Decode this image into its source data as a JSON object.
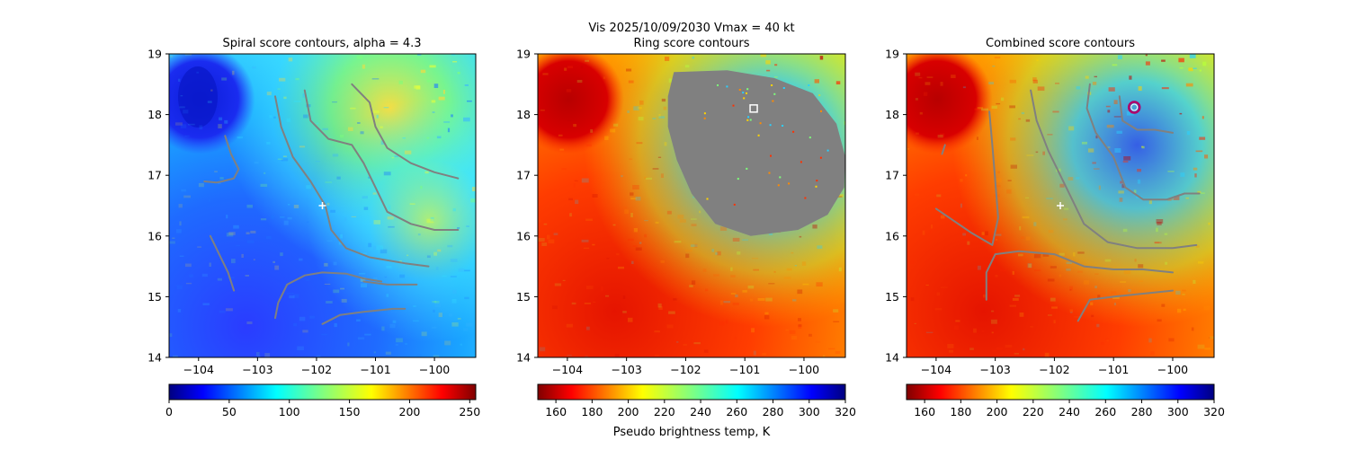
{
  "figure": {
    "suptitle_line1": "Vis  2025/10/09/2030    Vmax = 40 kt",
    "colorbar_label": "Pseudo brightness temp, K"
  },
  "chart_data": [
    {
      "type": "heatmap",
      "title": "Spiral score contours, alpha =  4.3",
      "xlabel": "",
      "ylabel": "",
      "xlim": [
        -104.5,
        -99.3
      ],
      "ylim": [
        14,
        19
      ],
      "x_ticks": [
        -104,
        -103,
        -102,
        -101,
        -100
      ],
      "x_tick_labels": [
        "−104",
        "−103",
        "−102",
        "−101",
        "−100"
      ],
      "y_ticks": [
        14,
        15,
        16,
        17,
        18,
        19
      ],
      "y_tick_labels": [
        "14",
        "15",
        "16",
        "17",
        "18",
        "19"
      ],
      "colormap": "jet",
      "colorbar": {
        "range": [
          0,
          255
        ],
        "reversed": false,
        "ticks": [
          0,
          50,
          100,
          150,
          200,
          250
        ],
        "tick_labels": [
          "0",
          "50",
          "100",
          "150",
          "200",
          "250"
        ]
      },
      "center_marker": {
        "x": -101.9,
        "y": 16.5,
        "symbol": "+",
        "color": "#ffffff"
      },
      "contour_color": "#808080",
      "contours": [
        [
          [
            -103.9,
            16.9
          ],
          [
            -103.7,
            16.88
          ],
          [
            -103.6,
            16.9
          ],
          [
            -103.4,
            16.95
          ],
          [
            -103.32,
            17.1
          ],
          [
            -103.45,
            17.35
          ],
          [
            -103.55,
            17.65
          ]
        ],
        [
          [
            -103.8,
            16.0
          ],
          [
            -103.65,
            15.7
          ],
          [
            -103.5,
            15.4
          ],
          [
            -103.4,
            15.1
          ]
        ],
        [
          [
            -102.7,
            14.65
          ],
          [
            -102.65,
            14.9
          ],
          [
            -102.5,
            15.2
          ],
          [
            -102.2,
            15.35
          ],
          [
            -101.9,
            15.4
          ],
          [
            -101.5,
            15.38
          ],
          [
            -101.2,
            15.3
          ],
          [
            -100.9,
            15.25
          ]
        ],
        [
          [
            -102.7,
            18.3
          ],
          [
            -102.6,
            17.8
          ],
          [
            -102.4,
            17.3
          ],
          [
            -102.1,
            16.9
          ],
          [
            -101.85,
            16.5
          ],
          [
            -101.75,
            16.1
          ],
          [
            -101.5,
            15.8
          ],
          [
            -101.1,
            15.65
          ],
          [
            -100.5,
            15.55
          ],
          [
            -100.1,
            15.5
          ]
        ],
        [
          [
            -102.2,
            18.4
          ],
          [
            -102.1,
            17.9
          ],
          [
            -101.8,
            17.6
          ],
          [
            -101.4,
            17.5
          ],
          [
            -101.2,
            17.2
          ],
          [
            -101.0,
            16.8
          ],
          [
            -100.8,
            16.4
          ],
          [
            -100.4,
            16.2
          ],
          [
            -100.0,
            16.1
          ],
          [
            -99.6,
            16.1
          ]
        ],
        [
          [
            -101.4,
            18.5
          ],
          [
            -101.1,
            18.2
          ],
          [
            -101.0,
            17.8
          ],
          [
            -100.8,
            17.45
          ],
          [
            -100.4,
            17.2
          ],
          [
            -100.0,
            17.05
          ],
          [
            -99.6,
            16.95
          ]
        ],
        [
          [
            -101.9,
            14.55
          ],
          [
            -101.6,
            14.7
          ],
          [
            -101.2,
            14.75
          ],
          [
            -100.7,
            14.8
          ],
          [
            -100.5,
            14.8
          ]
        ],
        [
          [
            -101.2,
            15.25
          ],
          [
            -100.8,
            15.2
          ],
          [
            -100.3,
            15.2
          ]
        ]
      ]
    },
    {
      "type": "heatmap",
      "title": "Ring score contours",
      "xlabel": "",
      "ylabel": "",
      "xlim": [
        -104.5,
        -99.3
      ],
      "ylim": [
        14,
        19
      ],
      "x_ticks": [
        -104,
        -103,
        -102,
        -101,
        -100
      ],
      "x_tick_labels": [
        "−104",
        "−103",
        "−102",
        "−101",
        "−100"
      ],
      "y_ticks": [
        14,
        15,
        16,
        17,
        18,
        19
      ],
      "y_tick_labels": [
        "14",
        "15",
        "16",
        "17",
        "18",
        "19"
      ],
      "colormap": "jet_r",
      "colorbar": {
        "range": [
          150,
          320
        ],
        "reversed": true,
        "ticks": [
          160,
          180,
          200,
          220,
          240,
          260,
          280,
          300,
          320
        ],
        "tick_labels": [
          "160",
          "180",
          "200",
          "220",
          "240",
          "260",
          "280",
          "300",
          "320"
        ]
      },
      "masked_region_color": "#808080",
      "masked_region": [
        [
          -102.2,
          18.7
        ],
        [
          -101.3,
          18.73
        ],
        [
          -100.5,
          18.6
        ],
        [
          -99.85,
          18.35
        ],
        [
          -99.45,
          17.85
        ],
        [
          -99.3,
          17.3
        ],
        [
          -99.32,
          16.8
        ],
        [
          -99.6,
          16.35
        ],
        [
          -100.1,
          16.1
        ],
        [
          -100.9,
          16.0
        ],
        [
          -101.5,
          16.2
        ],
        [
          -101.9,
          16.7
        ],
        [
          -102.15,
          17.25
        ],
        [
          -102.3,
          17.8
        ],
        [
          -102.3,
          18.3
        ]
      ],
      "square_marker": {
        "x": -100.85,
        "y": 18.1,
        "symbol": "square",
        "color": "#ffffff"
      }
    },
    {
      "type": "heatmap",
      "title": "Combined score contours",
      "xlabel": "",
      "ylabel": "",
      "xlim": [
        -104.5,
        -99.3
      ],
      "ylim": [
        14,
        19
      ],
      "x_ticks": [
        -104,
        -103,
        -102,
        -101,
        -100
      ],
      "x_tick_labels": [
        "−104",
        "−103",
        "−102",
        "−101",
        "−100"
      ],
      "y_ticks": [
        14,
        15,
        16,
        17,
        18,
        19
      ],
      "y_tick_labels": [
        "14",
        "15",
        "16",
        "17",
        "18",
        "19"
      ],
      "colormap": "jet_r",
      "colorbar": {
        "range": [
          150,
          320
        ],
        "reversed": true,
        "ticks": [
          160,
          180,
          200,
          220,
          240,
          260,
          280,
          300,
          320
        ],
        "tick_labels": [
          "160",
          "180",
          "200",
          "220",
          "240",
          "260",
          "280",
          "300",
          "320"
        ]
      },
      "center_marker": {
        "x": -101.9,
        "y": 16.5,
        "symbol": "+",
        "color": "#ffffff"
      },
      "circle_marker": {
        "x": -100.65,
        "y": 18.12,
        "color": "#b0006a"
      },
      "contour_color": "#808080",
      "contours": [
        [
          [
            -103.9,
            17.35
          ],
          [
            -103.85,
            17.5
          ]
        ],
        [
          [
            -104.0,
            16.45
          ],
          [
            -103.7,
            16.25
          ],
          [
            -103.4,
            16.05
          ],
          [
            -103.05,
            15.85
          ],
          [
            -102.95,
            16.3
          ],
          [
            -103.0,
            16.9
          ],
          [
            -103.05,
            17.5
          ],
          [
            -103.1,
            18.05
          ]
        ],
        [
          [
            -103.15,
            14.95
          ],
          [
            -103.15,
            15.4
          ],
          [
            -103.0,
            15.7
          ],
          [
            -102.6,
            15.75
          ],
          [
            -102.0,
            15.7
          ],
          [
            -101.5,
            15.5
          ],
          [
            -101.0,
            15.45
          ],
          [
            -100.5,
            15.45
          ],
          [
            -100.0,
            15.4
          ]
        ],
        [
          [
            -101.6,
            14.6
          ],
          [
            -101.4,
            14.95
          ],
          [
            -101.0,
            15.0
          ],
          [
            -100.5,
            15.05
          ],
          [
            -100.0,
            15.1
          ]
        ],
        [
          [
            -102.4,
            18.4
          ],
          [
            -102.3,
            17.9
          ],
          [
            -102.1,
            17.4
          ],
          [
            -101.8,
            16.8
          ],
          [
            -101.5,
            16.2
          ],
          [
            -101.1,
            15.9
          ],
          [
            -100.6,
            15.8
          ],
          [
            -100.0,
            15.8
          ],
          [
            -99.6,
            15.85
          ]
        ],
        [
          [
            -101.4,
            18.5
          ],
          [
            -101.45,
            18.1
          ],
          [
            -101.3,
            17.7
          ],
          [
            -101.0,
            17.3
          ],
          [
            -100.8,
            16.8
          ],
          [
            -100.5,
            16.6
          ],
          [
            -100.1,
            16.6
          ],
          [
            -99.8,
            16.7
          ],
          [
            -99.55,
            16.7
          ]
        ],
        [
          [
            -100.9,
            18.3
          ],
          [
            -100.85,
            17.9
          ],
          [
            -100.6,
            17.75
          ],
          [
            -100.3,
            17.75
          ],
          [
            -100.0,
            17.7
          ]
        ]
      ]
    }
  ]
}
